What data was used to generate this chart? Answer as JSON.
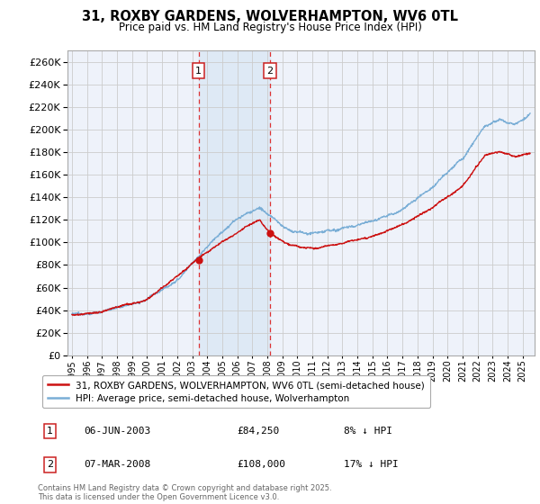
{
  "title": "31, ROXBY GARDENS, WOLVERHAMPTON, WV6 0TL",
  "subtitle": "Price paid vs. HM Land Registry's House Price Index (HPI)",
  "ylim": [
    0,
    270000
  ],
  "yticks": [
    0,
    20000,
    40000,
    60000,
    80000,
    100000,
    120000,
    140000,
    160000,
    180000,
    200000,
    220000,
    240000,
    260000
  ],
  "bg_color": "#ffffff",
  "plot_bg": "#eef2fa",
  "grid_color": "#cccccc",
  "hpi_color": "#7aaed6",
  "sale_color": "#cc1111",
  "shade_color": "#dce8f5",
  "shade_alpha": 0.85,
  "sale1_year": 2003.43,
  "sale1_price": 84250,
  "sale2_year": 2008.18,
  "sale2_price": 108000,
  "legend_sale": "31, ROXBY GARDENS, WOLVERHAMPTON, WV6 0TL (semi-detached house)",
  "legend_hpi": "HPI: Average price, semi-detached house, Wolverhampton",
  "annotation1_date": "06-JUN-2003",
  "annotation1_price": "£84,250",
  "annotation1_pct": "8% ↓ HPI",
  "annotation2_date": "07-MAR-2008",
  "annotation2_price": "£108,000",
  "annotation2_pct": "17% ↓ HPI",
  "footer": "Contains HM Land Registry data © Crown copyright and database right 2025.\nThis data is licensed under the Open Government Licence v3.0.",
  "xmin": 1994.7,
  "xmax": 2025.8
}
